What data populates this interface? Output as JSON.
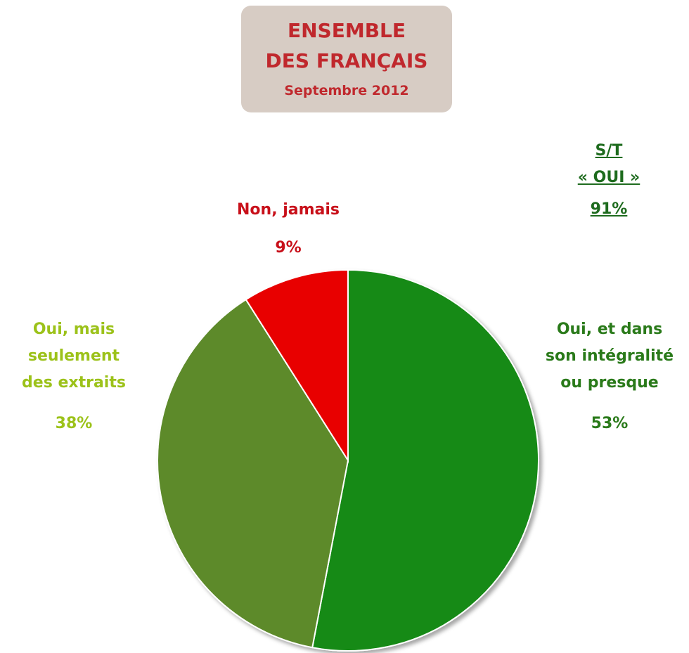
{
  "chart_data": {
    "type": "pie",
    "title": "ENSEMBLE\nDES FRANÇAIS",
    "subtitle": "Septembre 2012",
    "annotations": [
      "S/T\n« OUI »",
      "91%"
    ],
    "categories": [
      "Oui, et dans\nson intégralité\nou presque",
      "Oui, mais\nseulement\ndes extraits",
      "Non, jamais"
    ],
    "values": [
      53,
      38,
      9
    ],
    "value_labels": [
      "53%",
      "38%",
      "9%"
    ],
    "colors": [
      "#128a12",
      "#5d8a2c",
      "#e80000"
    ],
    "label_colors": [
      "#2a7a1a",
      "#9cc21a",
      "#c8101a"
    ],
    "annotation_color": "#1e6b1e"
  }
}
